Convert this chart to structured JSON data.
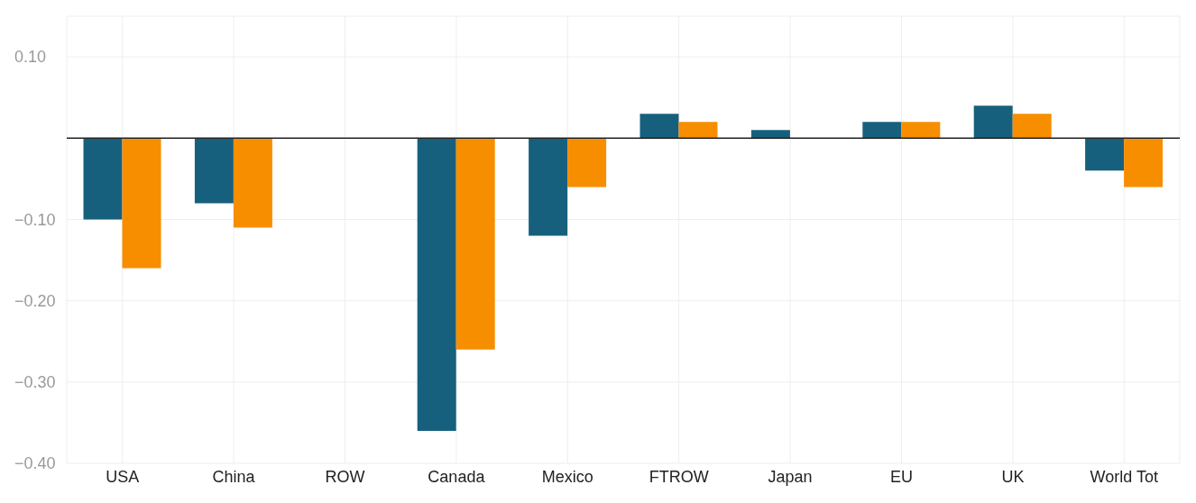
{
  "chart_data": {
    "type": "bar",
    "categories": [
      "USA",
      "China",
      "ROW",
      "Canada",
      "Mexico",
      "FTROW",
      "Japan",
      "EU",
      "UK",
      "World Tot"
    ],
    "series": [
      {
        "color": "#17607d",
        "values": [
          -0.1,
          -0.08,
          0,
          -0.36,
          -0.12,
          0.03,
          0.01,
          0.02,
          0.04,
          -0.04
        ]
      },
      {
        "color": "#f78e00",
        "values": [
          -0.16,
          -0.11,
          0,
          -0.26,
          -0.06,
          0.02,
          0,
          0.02,
          0.03,
          -0.06
        ]
      }
    ],
    "ylim": [
      -0.4,
      0.15
    ],
    "yticks": [
      {
        "value": -0.4,
        "label": "−0.40"
      },
      {
        "value": -0.3,
        "label": "−0.30"
      },
      {
        "value": -0.2,
        "label": "−0.20"
      },
      {
        "value": -0.1,
        "label": "−0.10"
      },
      {
        "value": 0,
        "label": null
      },
      {
        "value": 0.1,
        "label": "0.10"
      }
    ],
    "ref_lines": [
      {
        "axis": "y",
        "value": 0,
        "color": "#222222"
      }
    ],
    "grid": true,
    "legend": false
  }
}
